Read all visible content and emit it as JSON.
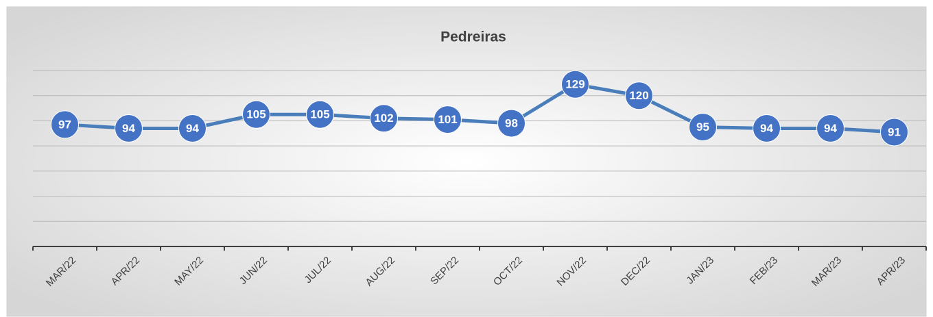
{
  "chart_data": {
    "type": "line",
    "title": "Pedreiras",
    "categories": [
      "MAR/22",
      "APR/22",
      "MAY/22",
      "JUN/22",
      "JUL/22",
      "AUG/22",
      "SEP/22",
      "OCT/22",
      "NOV/22",
      "DEC/22",
      "JAN/23",
      "FEB/23",
      "MAR/23",
      "APR/23"
    ],
    "values": [
      97,
      94,
      94,
      105,
      105,
      102,
      101,
      98,
      129,
      120,
      95,
      94,
      94,
      91
    ],
    "color": "#4a7ebb",
    "ylim": [
      0,
      140
    ],
    "yticks": [
      0,
      20,
      40,
      60,
      80,
      100,
      120,
      140
    ],
    "grid": true
  }
}
